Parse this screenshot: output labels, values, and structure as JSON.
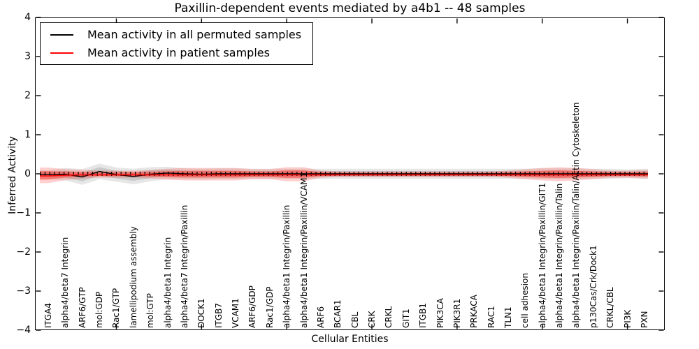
{
  "accent_colors": {
    "permuted_line": "#000000",
    "patient_line": "#ff0000",
    "permuted_band": "rgba(128,128,128,0.20)",
    "patient_band": "rgba(255,40,30,0.22)"
  },
  "chart_data": {
    "type": "area",
    "title": "Paxillin-dependent events mediated by a4b1 -- 48 samples",
    "xlabel": "Cellular Entities",
    "ylabel": "Inferred Activity",
    "ylim": [
      -4,
      4
    ],
    "yticks": [
      4,
      3,
      2,
      1,
      0,
      -1,
      -2,
      -3,
      -4
    ],
    "grid": false,
    "legend_position": "upper left",
    "categories": [
      "ITGA4",
      "alpha4/beta7 Integrin",
      "ARF6/GTP",
      "mol:GDP",
      "Rac1/GTP",
      "lamellipodium assembly",
      "mol:GTP",
      "alpha4/beta1 Integrin",
      "alpha4/beta7 Integrin/Paxillin",
      "DOCK1",
      "ITGB7",
      "VCAM1",
      "ARF6/GDP",
      "Rac1/GDP",
      "alpha4/beta1 Integrin/Paxillin",
      "alpha4/beta1 Integrin/Paxillin/VCAM1",
      "ARF6",
      "BCAR1",
      "CBL",
      "CRK",
      "CRKL",
      "GIT1",
      "ITGB1",
      "PIK3CA",
      "PIK3R1",
      "PRKACA",
      "RAC1",
      "TLN1",
      "cell adhesion",
      "alpha4/beta1 Integrin/Paxillin/GIT1",
      "alpha4/beta1 Integrin/Paxillin/Talin",
      "alpha4/beta1 Integrin/Paxillin/Talin/Actin Cytoskeleton",
      "p130Cas/Crk/Dock1",
      "CRKL/CBL",
      "PI3K",
      "PXN"
    ],
    "series": [
      {
        "name": "Mean activity in all permuted samples",
        "color": "#000000",
        "band_color": "128,128,128",
        "values": [
          -0.02,
          -0.01,
          -0.08,
          0.06,
          -0.02,
          -0.07,
          -0.01,
          0.02,
          0.0,
          -0.01,
          0.0,
          0.0,
          0.0,
          0.0,
          0.0,
          0.0,
          0.0,
          0.0,
          0.0,
          0.0,
          0.0,
          0.0,
          0.0,
          0.0,
          0.0,
          0.0,
          0.0,
          0.0,
          0.0,
          0.0,
          0.0,
          0.0,
          0.0,
          0.0,
          0.0,
          0.0
        ],
        "band": [
          0.11,
          0.16,
          0.2,
          0.2,
          0.18,
          0.2,
          0.18,
          0.16,
          0.14,
          0.14,
          0.14,
          0.14,
          0.13,
          0.13,
          0.13,
          0.13,
          0.13,
          0.13,
          0.13,
          0.13,
          0.13,
          0.13,
          0.13,
          0.13,
          0.13,
          0.13,
          0.13,
          0.13,
          0.13,
          0.14,
          0.14,
          0.14,
          0.13,
          0.13,
          0.11,
          0.13
        ]
      },
      {
        "name": "Mean activity in patient samples",
        "color": "#ff0000",
        "band_color": "255,40,30",
        "values": [
          -0.04,
          -0.02,
          -0.01,
          -0.01,
          -0.01,
          -0.01,
          -0.01,
          -0.01,
          -0.01,
          -0.01,
          -0.01,
          -0.01,
          -0.01,
          -0.01,
          -0.01,
          -0.01,
          -0.01,
          -0.01,
          -0.01,
          -0.01,
          -0.01,
          -0.01,
          -0.01,
          -0.01,
          -0.01,
          -0.01,
          -0.01,
          -0.01,
          -0.01,
          -0.01,
          -0.01,
          -0.01,
          -0.01,
          -0.01,
          -0.01,
          -0.01
        ],
        "band": [
          0.2,
          0.14,
          0.11,
          0.09,
          0.09,
          0.09,
          0.11,
          0.14,
          0.16,
          0.16,
          0.16,
          0.16,
          0.13,
          0.13,
          0.18,
          0.18,
          0.09,
          0.07,
          0.07,
          0.07,
          0.07,
          0.07,
          0.07,
          0.07,
          0.07,
          0.07,
          0.07,
          0.09,
          0.13,
          0.16,
          0.18,
          0.16,
          0.13,
          0.09,
          0.09,
          0.11
        ]
      }
    ]
  }
}
